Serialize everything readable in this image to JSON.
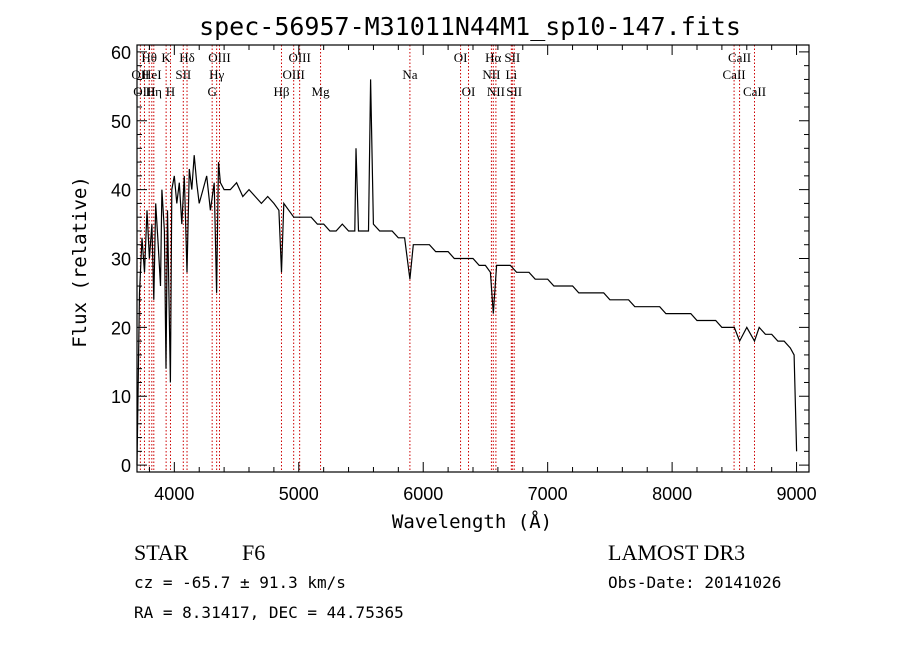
{
  "chart_data": {
    "type": "line",
    "title": "spec-56957-M31011N44M1_sp10-147.fits",
    "xlabel": "Wavelength (Å)",
    "ylabel": "Flux (relative)",
    "xlim": [
      3700,
      9100
    ],
    "ylim": [
      -1,
      61
    ],
    "xticks": [
      4000,
      5000,
      6000,
      7000,
      8000,
      9000
    ],
    "yticks": [
      0,
      10,
      20,
      30,
      40,
      50,
      60
    ],
    "series": [
      {
        "name": "flux",
        "x": [
          3700,
          3720,
          3740,
          3760,
          3780,
          3800,
          3820,
          3835,
          3850,
          3870,
          3889,
          3900,
          3920,
          3933,
          3945,
          3968,
          3980,
          4000,
          4020,
          4040,
          4060,
          4080,
          4102,
          4120,
          4140,
          4160,
          4180,
          4200,
          4230,
          4260,
          4290,
          4320,
          4340,
          4355,
          4370,
          4400,
          4450,
          4500,
          4550,
          4600,
          4650,
          4700,
          4750,
          4800,
          4840,
          4861,
          4880,
          4920,
          4960,
          5000,
          5050,
          5100,
          5150,
          5200,
          5250,
          5300,
          5350,
          5400,
          5450,
          5460,
          5480,
          5520,
          5560,
          5577,
          5600,
          5650,
          5700,
          5750,
          5800,
          5850,
          5893,
          5920,
          5960,
          6000,
          6050,
          6100,
          6150,
          6200,
          6250,
          6300,
          6350,
          6400,
          6450,
          6500,
          6540,
          6563,
          6590,
          6650,
          6700,
          6750,
          6800,
          6850,
          6900,
          6950,
          7000,
          7050,
          7100,
          7150,
          7200,
          7250,
          7300,
          7350,
          7400,
          7450,
          7500,
          7550,
          7600,
          7650,
          7700,
          7750,
          7800,
          7850,
          7900,
          7950,
          8000,
          8050,
          8100,
          8150,
          8200,
          8250,
          8300,
          8350,
          8400,
          8450,
          8500,
          8542,
          8600,
          8662,
          8700,
          8750,
          8800,
          8850,
          8900,
          8950,
          8980,
          9000
        ],
        "y": [
          0,
          25,
          33,
          28,
          37,
          30,
          35,
          24,
          38,
          32,
          26,
          40,
          34,
          14,
          37,
          12,
          40,
          42,
          38,
          41,
          35,
          42,
          28,
          43,
          40,
          45,
          41,
          38,
          40,
          42,
          37,
          41,
          25,
          44,
          41,
          40,
          40,
          41,
          39,
          40,
          39,
          38,
          39,
          38,
          37,
          28,
          38,
          37,
          36,
          36,
          36,
          36,
          35,
          35,
          34,
          34,
          35,
          34,
          34,
          46,
          34,
          34,
          34,
          56,
          35,
          34,
          34,
          34,
          33,
          33,
          27,
          32,
          32,
          32,
          32,
          31,
          31,
          31,
          30,
          30,
          30,
          30,
          29,
          29,
          28,
          22,
          29,
          29,
          29,
          28,
          28,
          28,
          27,
          27,
          27,
          26,
          26,
          26,
          26,
          25,
          25,
          25,
          25,
          25,
          24,
          24,
          24,
          24,
          23,
          23,
          23,
          23,
          23,
          22,
          22,
          22,
          22,
          22,
          21,
          21,
          21,
          21,
          20,
          20,
          20,
          18,
          20,
          18,
          20,
          19,
          19,
          18,
          18,
          17,
          16,
          2
        ]
      }
    ],
    "line_markers": [
      {
        "label": "Hθ",
        "wavelength": 3798,
        "row": 0
      },
      {
        "label": "OII",
        "wavelength": 3727,
        "row": 1
      },
      {
        "label": "OIII",
        "wavelength": 3760,
        "row": 2
      },
      {
        "label": "HeI",
        "wavelength": 3819,
        "row": 1
      },
      {
        "label": "Hη",
        "wavelength": 3835,
        "row": 2
      },
      {
        "label": "K",
        "wavelength": 3934,
        "row": 0
      },
      {
        "label": "SII",
        "wavelength": 4072,
        "row": 1
      },
      {
        "label": "H",
        "wavelength": 3969,
        "row": 2
      },
      {
        "label": "Hδ",
        "wavelength": 4102,
        "row": 0
      },
      {
        "label": "OIII",
        "wavelength": 4363,
        "row": 0
      },
      {
        "label": "Hγ",
        "wavelength": 4340,
        "row": 1
      },
      {
        "label": "G",
        "wavelength": 4304,
        "row": 2
      },
      {
        "label": "Hβ",
        "wavelength": 4861,
        "row": 2
      },
      {
        "label": "OIII",
        "wavelength": 5007,
        "row": 0
      },
      {
        "label": "OIII",
        "wavelength": 4959,
        "row": 1
      },
      {
        "label": "Mg",
        "wavelength": 5175,
        "row": 2
      },
      {
        "label": "Na",
        "wavelength": 5893,
        "row": 1
      },
      {
        "label": "OI",
        "wavelength": 6300,
        "row": 0
      },
      {
        "label": "OI",
        "wavelength": 6364,
        "row": 2
      },
      {
        "label": "Hα",
        "wavelength": 6563,
        "row": 0
      },
      {
        "label": "SII",
        "wavelength": 6716,
        "row": 0
      },
      {
        "label": "NII",
        "wavelength": 6548,
        "row": 1
      },
      {
        "label": "Li",
        "wavelength": 6708,
        "row": 1
      },
      {
        "label": "NII",
        "wavelength": 6584,
        "row": 2
      },
      {
        "label": "SII",
        "wavelength": 6731,
        "row": 2
      },
      {
        "label": "CaII",
        "wavelength": 8542,
        "row": 0
      },
      {
        "label": "CaII",
        "wavelength": 8498,
        "row": 1
      },
      {
        "label": "CaII",
        "wavelength": 8662,
        "row": 2
      }
    ]
  },
  "info": {
    "class_label": "STAR",
    "subclass": "F6",
    "survey": "LAMOST DR3",
    "cz": "cz = -65.7 ± 91.3 km/s",
    "obs_date": "Obs-Date: 20141026",
    "coords": "RA =   8.31417, DEC =  44.75365"
  },
  "colors": {
    "axes": "#000000",
    "marker_lines": "#cc0000",
    "marker_text": "#000000",
    "spectrum": "#000000"
  }
}
